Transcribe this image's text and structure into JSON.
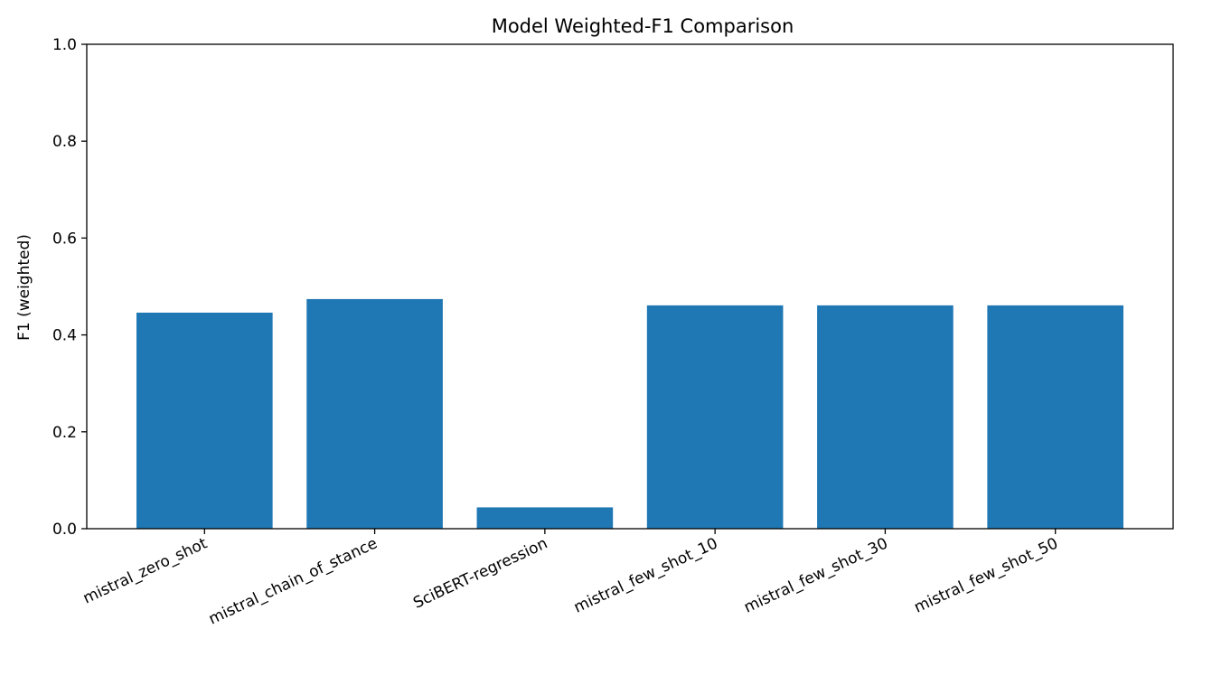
{
  "chart_data": {
    "type": "bar",
    "title": "Model Weighted-F1 Comparison",
    "xlabel": "",
    "ylabel": "F1 (weighted)",
    "ylim": [
      0,
      1.0
    ],
    "yticks": [
      "0.0",
      "0.2",
      "0.4",
      "0.6",
      "0.8",
      "1.0"
    ],
    "categories": [
      "mistral_zero_shot",
      "mistral_chain_of_stance",
      "SciBERT-regression",
      "mistral_few_shot_10",
      "mistral_few_shot_30",
      "mistral_few_shot_50"
    ],
    "values": [
      0.446,
      0.474,
      0.044,
      0.461,
      0.461,
      0.461
    ],
    "bar_color": "#1f77b4",
    "grid": false,
    "legend": "none"
  }
}
